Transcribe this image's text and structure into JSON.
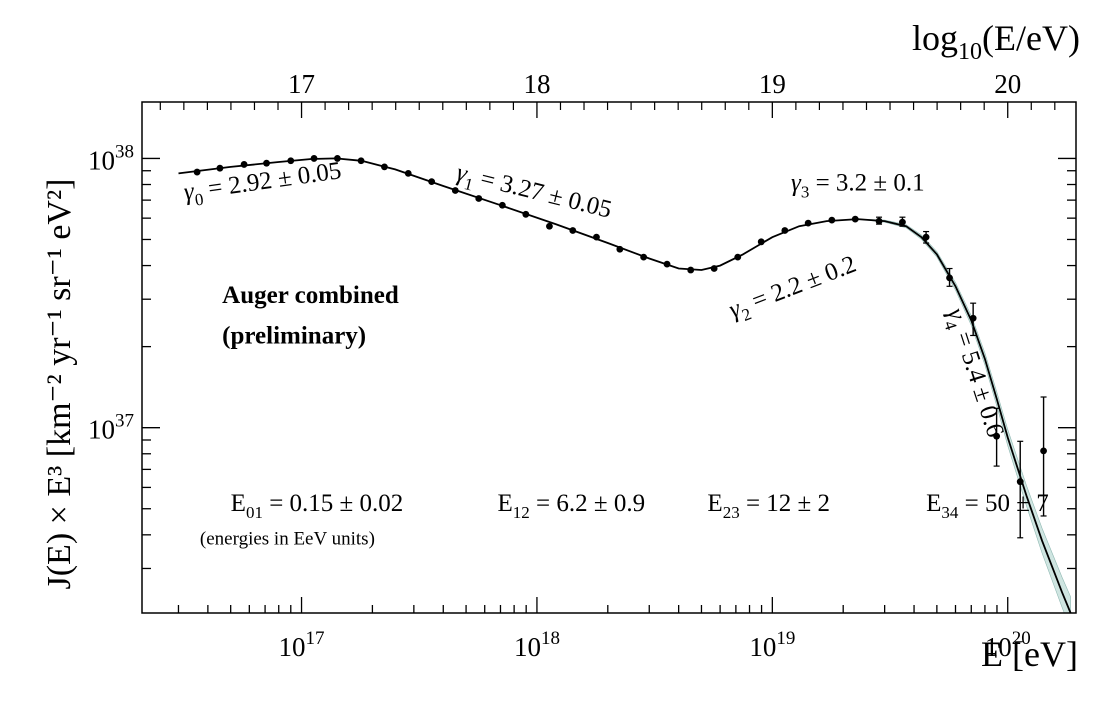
{
  "chart_data": {
    "type": "scatter",
    "xlabel_bottom": "E [eV]",
    "xlabel_top": "log10(E/eV)",
    "ylabel": "J(E) × E³ [km⁻² yr⁻¹ sr⁻¹ eV²]",
    "xscale": "log",
    "yscale": "log",
    "xlim": [
      2.1e+16,
      1.95e+20
    ],
    "ylim": [
      2.05e+36,
      1.62e+38
    ],
    "x_ticks_bottom": [
      {
        "value": 1e+17,
        "base": "10",
        "exp": "17"
      },
      {
        "value": 1e+18,
        "base": "10",
        "exp": "18"
      },
      {
        "value": 1e+19,
        "base": "10",
        "exp": "19"
      },
      {
        "value": 1e+20,
        "base": "10",
        "exp": "20"
      }
    ],
    "x_ticks_top": [
      {
        "value": 1e+17,
        "label": "17"
      },
      {
        "value": 1e+18,
        "label": "18"
      },
      {
        "value": 1e+19,
        "label": "19"
      },
      {
        "value": 1e+20,
        "label": "20"
      }
    ],
    "y_ticks": [
      {
        "value": 1e+37,
        "base": "10",
        "exp": "37"
      },
      {
        "value": 1e+38,
        "base": "10",
        "exp": "38"
      }
    ],
    "series": [
      {
        "type": "scatter",
        "points": [
          {
            "x": 3.6e+16,
            "y": 8.9e+37
          },
          {
            "x": 4.5e+16,
            "y": 9.2e+37
          },
          {
            "x": 5.7e+16,
            "y": 9.5e+37
          },
          {
            "x": 7.1e+16,
            "y": 9.6e+37
          },
          {
            "x": 9e+16,
            "y": 9.8e+37
          },
          {
            "x": 1.13e+17,
            "y": 1e+38
          },
          {
            "x": 1.42e+17,
            "y": 1e+38
          },
          {
            "x": 1.79e+17,
            "y": 9.8e+37
          },
          {
            "x": 2.25e+17,
            "y": 9.3e+37
          },
          {
            "x": 2.84e+17,
            "y": 8.8e+37
          },
          {
            "x": 3.57e+17,
            "y": 8.2e+37
          },
          {
            "x": 4.5e+17,
            "y": 7.6e+37
          },
          {
            "x": 5.66e+17,
            "y": 7.1e+37
          },
          {
            "x": 7.13e+17,
            "y": 6.7e+37
          },
          {
            "x": 8.97e+17,
            "y": 6.2e+37
          },
          {
            "x": 1.13e+18,
            "y": 5.6e+37
          },
          {
            "x": 1.42e+18,
            "y": 5.4e+37
          },
          {
            "x": 1.79e+18,
            "y": 5.1e+37
          },
          {
            "x": 2.25e+18,
            "y": 4.6e+37
          },
          {
            "x": 2.84e+18,
            "y": 4.3e+37
          },
          {
            "x": 3.57e+18,
            "y": 4.05e+37
          },
          {
            "x": 4.5e+18,
            "y": 3.85e+37
          },
          {
            "x": 5.66e+18,
            "y": 3.9e+37
          },
          {
            "x": 7.13e+18,
            "y": 4.3e+37
          },
          {
            "x": 8.97e+18,
            "y": 4.9e+37
          },
          {
            "x": 1.13e+19,
            "y": 5.4e+37
          },
          {
            "x": 1.42e+19,
            "y": 5.75e+37
          },
          {
            "x": 1.79e+19,
            "y": 5.9e+37
          },
          {
            "x": 2.25e+19,
            "y": 5.95e+37
          },
          {
            "x": 2.84e+19,
            "y": 5.85e+37,
            "err_lo": 5.7e+37,
            "err_hi": 6.05e+37
          },
          {
            "x": 3.57e+19,
            "y": 5.8e+37,
            "err_lo": 5.6e+37,
            "err_hi": 6.05e+37
          },
          {
            "x": 4.5e+19,
            "y": 5.1e+37,
            "err_lo": 4.85e+37,
            "err_hi": 5.35e+37
          },
          {
            "x": 5.66e+19,
            "y": 3.6e+37,
            "err_lo": 3.35e+37,
            "err_hi": 3.9e+37
          },
          {
            "x": 7.13e+19,
            "y": 2.55e+37,
            "err_lo": 2.2e+37,
            "err_hi": 2.9e+37
          },
          {
            "x": 8.97e+19,
            "y": 9.3e+36,
            "err_lo": 7.2e+36,
            "err_hi": 1.18e+37
          },
          {
            "x": 1.13e+20,
            "y": 6.3e+36,
            "err_lo": 3.9e+36,
            "err_hi": 8.9e+36
          },
          {
            "x": 1.42e+20,
            "y": 8.2e+36,
            "err_lo": 4.7e+36,
            "err_hi": 1.3e+37
          }
        ]
      },
      {
        "type": "line",
        "points": [
          {
            "x": 3e+16,
            "y": 8.8e+37
          },
          {
            "x": 5e+16,
            "y": 9.3e+37
          },
          {
            "x": 8e+16,
            "y": 9.7e+37
          },
          {
            "x": 1.1e+17,
            "y": 9.95e+37
          },
          {
            "x": 1.4e+17,
            "y": 1e+38
          },
          {
            "x": 1.8e+17,
            "y": 9.8e+37
          },
          {
            "x": 2.5e+17,
            "y": 9.1e+37
          },
          {
            "x": 4e+17,
            "y": 7.9e+37
          },
          {
            "x": 7e+17,
            "y": 6.7e+37
          },
          {
            "x": 1.2e+18,
            "y": 5.7e+37
          },
          {
            "x": 2e+18,
            "y": 4.85e+37
          },
          {
            "x": 3e+18,
            "y": 4.25e+37
          },
          {
            "x": 4e+18,
            "y": 3.9e+37
          },
          {
            "x": 5e+18,
            "y": 3.85e+37
          },
          {
            "x": 6e+18,
            "y": 4e+37
          },
          {
            "x": 7.5e+18,
            "y": 4.4e+37
          },
          {
            "x": 1e+19,
            "y": 5.1e+37
          },
          {
            "x": 1.3e+19,
            "y": 5.6e+37
          },
          {
            "x": 1.7e+19,
            "y": 5.85e+37
          },
          {
            "x": 2.3e+19,
            "y": 5.95e+37
          },
          {
            "x": 3e+19,
            "y": 5.85e+37
          },
          {
            "x": 3.7e+19,
            "y": 5.6e+37
          },
          {
            "x": 4.3e+19,
            "y": 5.1e+37
          },
          {
            "x": 5e+19,
            "y": 4.4e+37
          },
          {
            "x": 6e+19,
            "y": 3.35e+37
          },
          {
            "x": 7e+19,
            "y": 2.5e+37
          },
          {
            "x": 8e+19,
            "y": 1.8e+37
          },
          {
            "x": 9e+19,
            "y": 1.27e+37
          },
          {
            "x": 1e+20,
            "y": 9.2e+36
          },
          {
            "x": 1.2e+20,
            "y": 5.6e+36
          },
          {
            "x": 1.4e+20,
            "y": 3.8e+36
          },
          {
            "x": 1.7e+20,
            "y": 2.45e+36
          },
          {
            "x": 1.85e+20,
            "y": 2.05e+36
          }
        ],
        "band_halfwidth_dex": [
          0,
          0,
          0,
          0,
          0,
          0,
          0,
          0,
          0,
          0,
          0,
          0,
          0,
          0,
          0,
          0,
          0,
          0,
          0,
          0,
          0.004,
          0.006,
          0.008,
          0.01,
          0.014,
          0.018,
          0.022,
          0.026,
          0.03,
          0.038,
          0.046,
          0.056,
          0.06
        ]
      }
    ],
    "annotations": [
      {
        "kind": "gamma",
        "sub": "0",
        "text": " = 2.92 ± 0.05",
        "x": 3.2e+16,
        "y": 7e+37,
        "angle": -8
      },
      {
        "kind": "gamma",
        "sub": "1",
        "text": " = 3.27 ± 0.05",
        "x": 4.5e+17,
        "y": 8.35e+37,
        "angle": 14
      },
      {
        "kind": "gamma",
        "sub": "3",
        "text": " = 3.2 ± 0.1",
        "x": 1.2e+19,
        "y": 7.6e+37,
        "angle": 0
      },
      {
        "kind": "gamma",
        "sub": "2",
        "text": " = 2.2 ± 0.2",
        "x": 6.8e+18,
        "y": 2.55e+37,
        "angle": -21
      },
      {
        "kind": "gamma",
        "sub": "4",
        "text": " = 5.4 ± 0.6",
        "x": 5.55e+19,
        "y": 2.7e+37,
        "angle": 72
      },
      {
        "kind": "bold",
        "text": "Auger combined",
        "x": 4.6e+16,
        "y": 2.9e+37
      },
      {
        "kind": "bold",
        "text": "(preliminary)",
        "x": 4.6e+16,
        "y": 2.05e+37
      },
      {
        "kind": "E",
        "sub": "01",
        "text": " = 0.15 ± 0.02",
        "x": 5e+16,
        "y": 4.9e+36
      },
      {
        "kind": "E",
        "sub": "12",
        "text": " = 6.2 ± 0.9",
        "x": 6.8e+17,
        "y": 4.9e+36
      },
      {
        "kind": "E",
        "sub": "23",
        "text": " = 12 ± 2",
        "x": 5.3e+18,
        "y": 4.9e+36
      },
      {
        "kind": "E",
        "sub": "34",
        "text": " = 50 ± 7",
        "x": 4.5e+19,
        "y": 4.9e+36
      },
      {
        "kind": "small",
        "text": "(energies in EeV units)",
        "x": 3.7e+16,
        "y": 3.68e+36
      }
    ]
  }
}
